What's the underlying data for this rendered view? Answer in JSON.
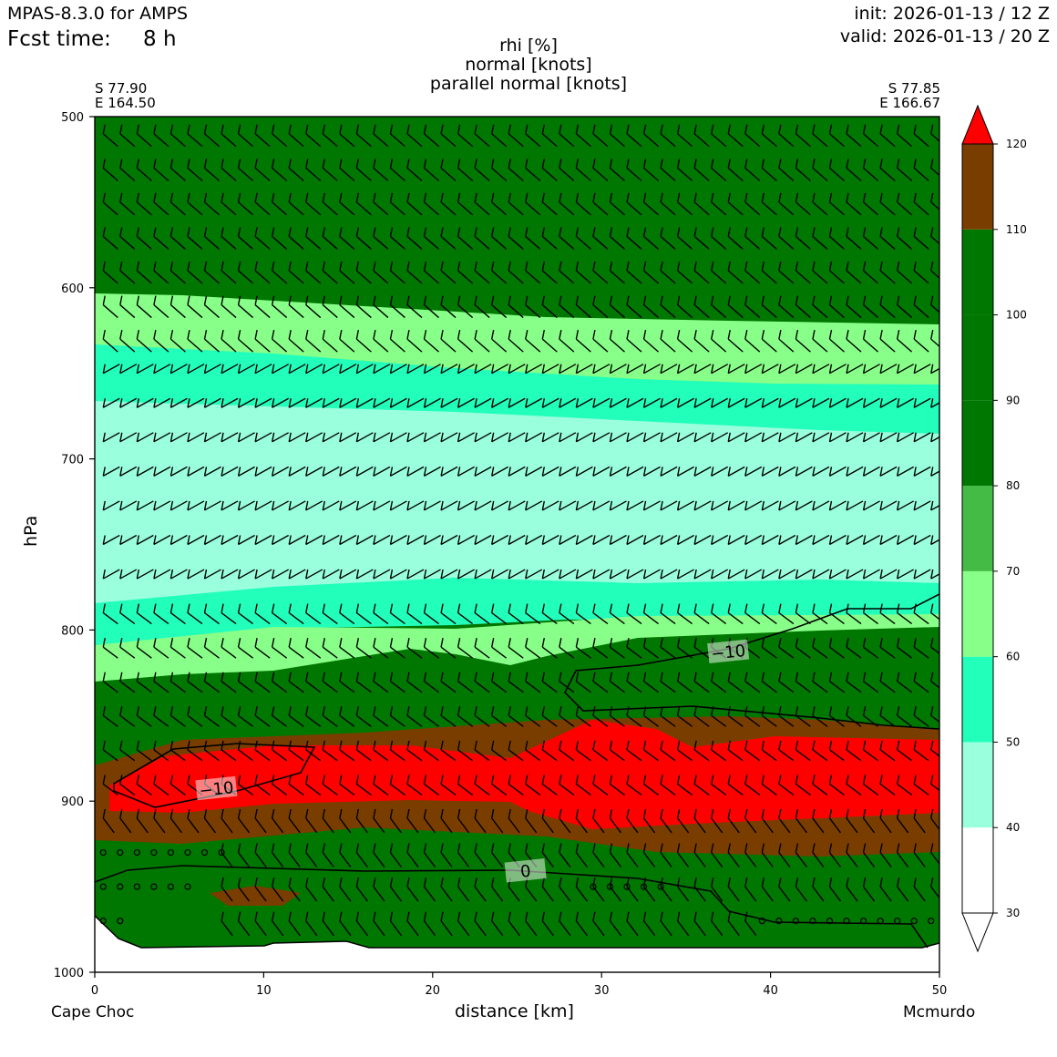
{
  "header": {
    "model": "MPAS-8.3.0 for AMPS",
    "fcst_label": "Fcst time:",
    "fcst_value": "8 h",
    "init": "init: 2026-01-13 / 12 Z",
    "valid": "valid: 2026-01-13 / 20 Z"
  },
  "titles": [
    "rhi [%]",
    "normal [knots]",
    "parallel normal [knots]"
  ],
  "endpoints": {
    "left": {
      "lat": "S 77.90",
      "lon": "E 164.50",
      "name": "Cape Choc"
    },
    "right": {
      "lat": "S 77.85",
      "lon": "E 166.67",
      "name": "Mcmurdo"
    }
  },
  "chart_data": {
    "type": "heatmap",
    "xlabel": "distance [km]",
    "ylabel": "hPa",
    "xlim": [
      0,
      50
    ],
    "ylim": [
      1000,
      500
    ],
    "x_ticks": [
      0,
      10,
      20,
      30,
      40,
      50
    ],
    "y_ticks": [
      500,
      600,
      700,
      800,
      900,
      1000
    ],
    "colorbar": {
      "levels": [
        30,
        40,
        50,
        60,
        70,
        80,
        90,
        100,
        110,
        120
      ],
      "colors": [
        "#ffffff",
        "#99ffdd",
        "#22ffbb",
        "#88ff88",
        "#44bb44",
        "#007700",
        "#007700",
        "#007700",
        "#7a3d00",
        "#ff0000"
      ],
      "extend": "both"
    },
    "fields": {
      "green": "#007700",
      "light_green": "#88ff88",
      "aqua": "#22ffbb",
      "pale_aqua": "#99ffdd",
      "brown": "#7a3d00",
      "red": "#ff0000"
    },
    "contour_labels": [
      {
        "text": "−10",
        "x": 7.2,
        "p": 893
      },
      {
        "text": "−10",
        "x": 37.5,
        "p": 813
      },
      {
        "text": "0",
        "x": 25.5,
        "p": 941
      }
    ],
    "barb_levels_hpa": [
      510,
      530,
      550,
      570,
      590,
      610,
      630,
      650,
      670,
      690,
      710,
      730,
      750,
      770,
      790,
      810,
      830,
      850,
      870,
      890,
      910,
      930,
      950,
      970
    ],
    "barb_x_step_km": 1.0
  }
}
